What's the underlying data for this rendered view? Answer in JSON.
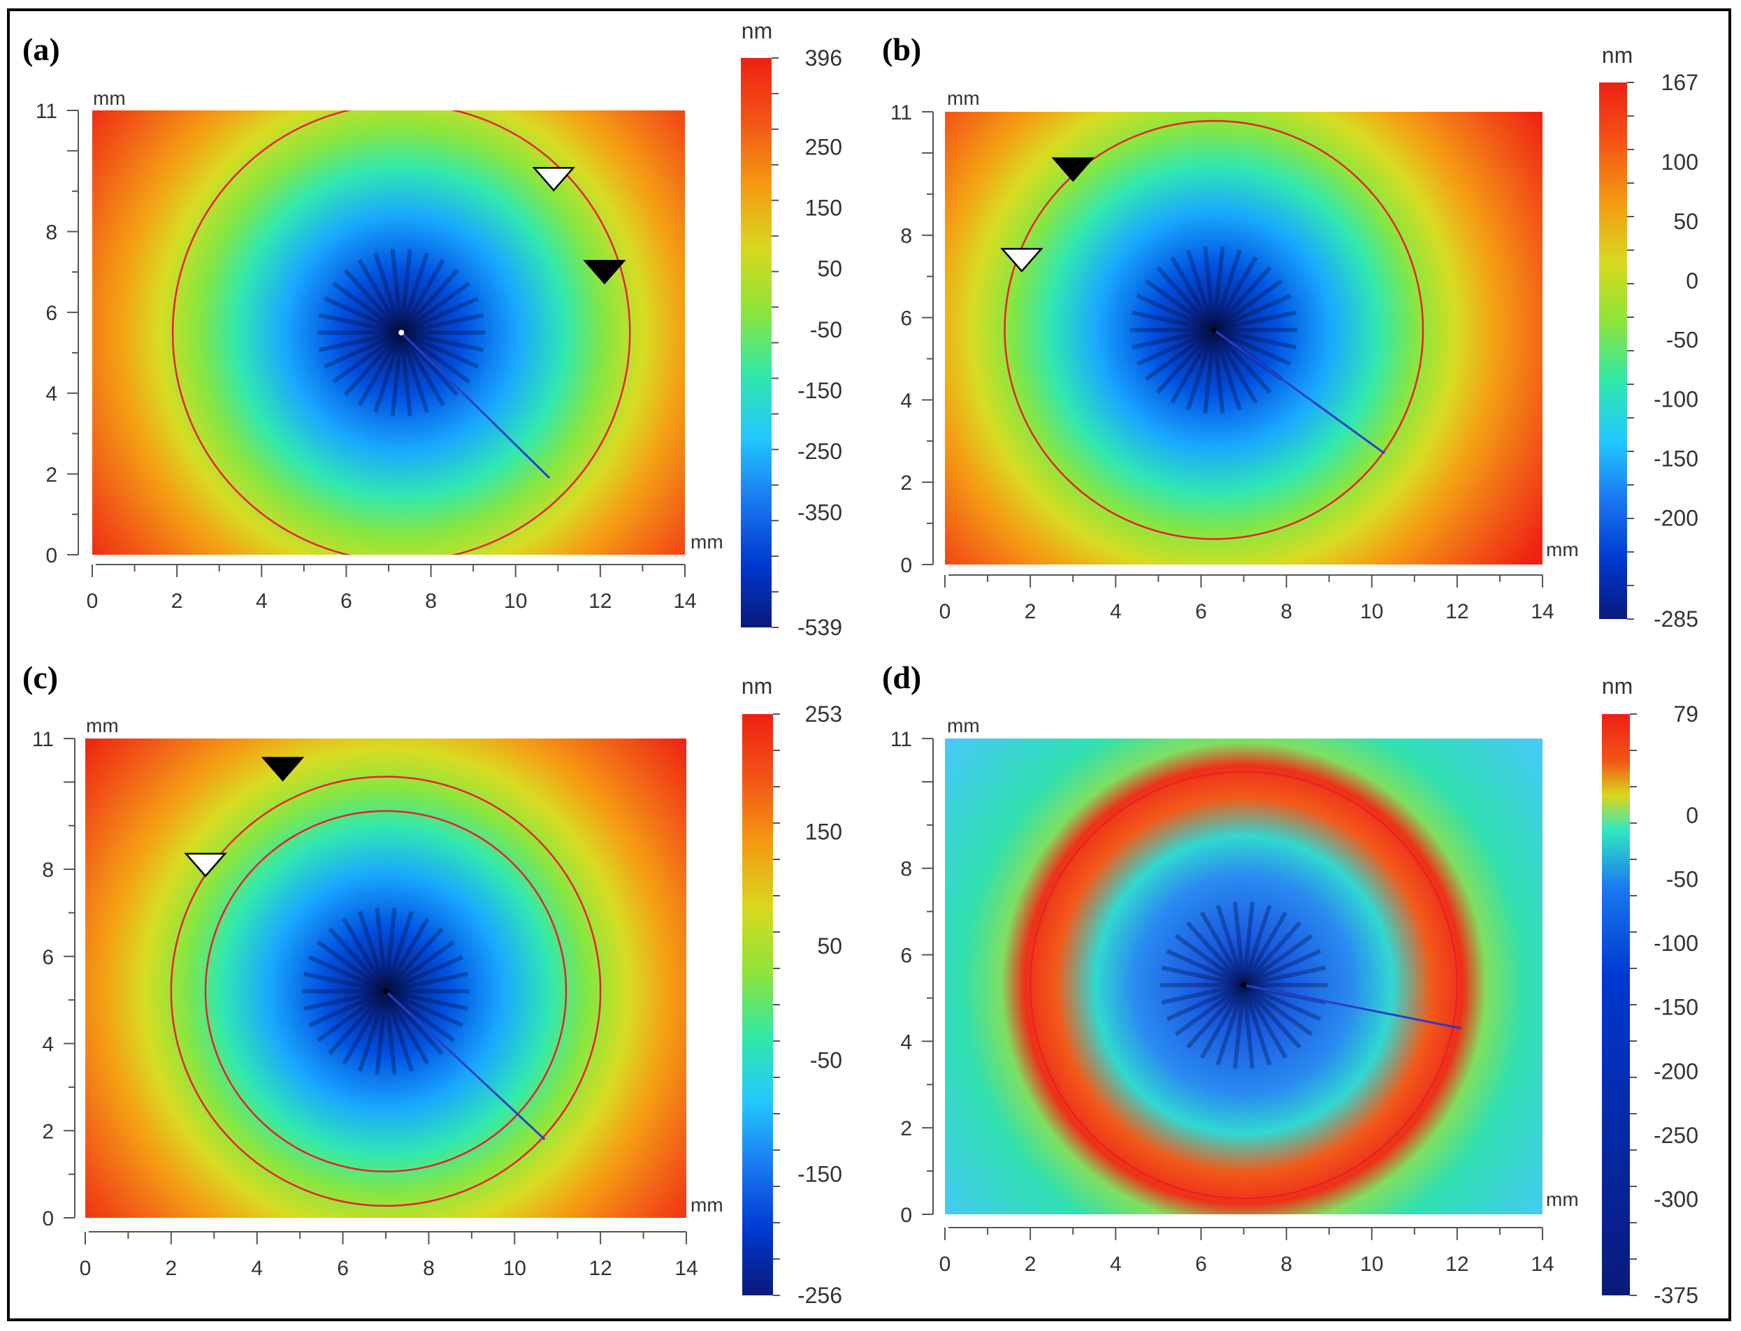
{
  "colors": {
    "spectrum": [
      "#0a1a7a",
      "#0038d0",
      "#1a78f0",
      "#22c8ff",
      "#30e8a8",
      "#8ee43a",
      "#d8d81e",
      "#f49a12",
      "#f25516",
      "#ee2012"
    ],
    "circle": "#e8202a",
    "section_line": "#2a3ec8",
    "marker_open": "#ffffff",
    "marker_filled": "#000000"
  },
  "chart_data": [
    {
      "panel": "(a)",
      "type": "heatmap",
      "xlabel": "mm",
      "ylabel": "mm",
      "xlim": [
        0,
        14
      ],
      "ylim": [
        0,
        11
      ],
      "x_ticks": [
        "0",
        "2",
        "4",
        "6",
        "8",
        "10",
        "12",
        "14"
      ],
      "y_ticks": [
        "0",
        "2",
        "4",
        "6",
        "8",
        "11"
      ],
      "center": [
        7.3,
        5.5
      ],
      "circles": [
        [
          7.3,
          5.5,
          5.4
        ]
      ],
      "section_line": [
        [
          7.3,
          5.5
        ],
        [
          10.8,
          1.9
        ]
      ],
      "markers": [
        {
          "kind": "open",
          "x": 10.9,
          "y": 9.3
        },
        {
          "kind": "filled",
          "x": 12.1,
          "y": 7.0
        }
      ],
      "colorbar": {
        "unit": "nm",
        "min": -539,
        "max": 396,
        "ticks": [
          "396",
          "250",
          "150",
          "50",
          "-50",
          "-150",
          "-250",
          "-350",
          "-539"
        ]
      },
      "pattern": "smooth"
    },
    {
      "panel": "(b)",
      "type": "heatmap",
      "xlabel": "mm",
      "ylabel": "mm",
      "xlim": [
        0,
        14
      ],
      "ylim": [
        0,
        11
      ],
      "x_ticks": [
        "0",
        "2",
        "4",
        "6",
        "8",
        "10",
        "12",
        "14"
      ],
      "y_ticks": [
        "0",
        "2",
        "4",
        "6",
        "8",
        "11"
      ],
      "center": [
        6.3,
        5.7
      ],
      "circles": [
        [
          6.3,
          5.7,
          4.9
        ]
      ],
      "section_line": [
        [
          6.3,
          5.7
        ],
        [
          10.3,
          2.7
        ]
      ],
      "markers": [
        {
          "kind": "filled",
          "x": 3.0,
          "y": 9.6
        },
        {
          "kind": "open",
          "x": 1.8,
          "y": 7.4
        }
      ],
      "colorbar": {
        "unit": "nm",
        "min": -285,
        "max": 167,
        "ticks": [
          "167",
          "100",
          "50",
          "0",
          "-50",
          "-100",
          "-150",
          "-200",
          "-285"
        ]
      },
      "pattern": "smooth"
    },
    {
      "panel": "(c)",
      "type": "heatmap",
      "xlabel": "mm",
      "ylabel": "mm",
      "xlim": [
        0,
        14
      ],
      "ylim": [
        0,
        11
      ],
      "x_ticks": [
        "0",
        "2",
        "4",
        "6",
        "8",
        "10",
        "12",
        "14"
      ],
      "y_ticks": [
        "0",
        "2",
        "4",
        "6",
        "8",
        "11"
      ],
      "center": [
        7.0,
        5.2
      ],
      "circles": [
        [
          7.0,
          5.2,
          5.0
        ],
        [
          7.0,
          5.2,
          4.2
        ]
      ],
      "section_line": [
        [
          7.0,
          5.2
        ],
        [
          10.7,
          1.8
        ]
      ],
      "markers": [
        {
          "kind": "filled",
          "x": 4.6,
          "y": 10.3
        },
        {
          "kind": "open",
          "x": 2.8,
          "y": 8.1
        }
      ],
      "colorbar": {
        "unit": "nm",
        "min": -256,
        "max": 253,
        "ticks": [
          "253",
          "150",
          "50",
          "-50",
          "-150",
          "-256"
        ]
      },
      "pattern": "smooth"
    },
    {
      "panel": "(d)",
      "type": "heatmap",
      "xlabel": "mm",
      "ylabel": "mm",
      "xlim": [
        0,
        14
      ],
      "ylim": [
        0,
        11
      ],
      "x_ticks": [
        "0",
        "2",
        "4",
        "6",
        "8",
        "10",
        "12",
        "14"
      ],
      "y_ticks": [
        "0",
        "2",
        "4",
        "6",
        "8",
        "11"
      ],
      "center": [
        7.0,
        5.3
      ],
      "circles": [
        [
          7.0,
          5.3,
          5.0
        ]
      ],
      "section_line": [
        [
          7.0,
          5.3
        ],
        [
          12.1,
          4.3
        ]
      ],
      "markers": [],
      "colorbar": {
        "unit": "nm",
        "min": -375,
        "max": 79,
        "ticks": [
          "79",
          "0",
          "-50",
          "-100",
          "-150",
          "-200",
          "-250",
          "-300",
          "-375"
        ]
      },
      "pattern": "rings"
    }
  ]
}
